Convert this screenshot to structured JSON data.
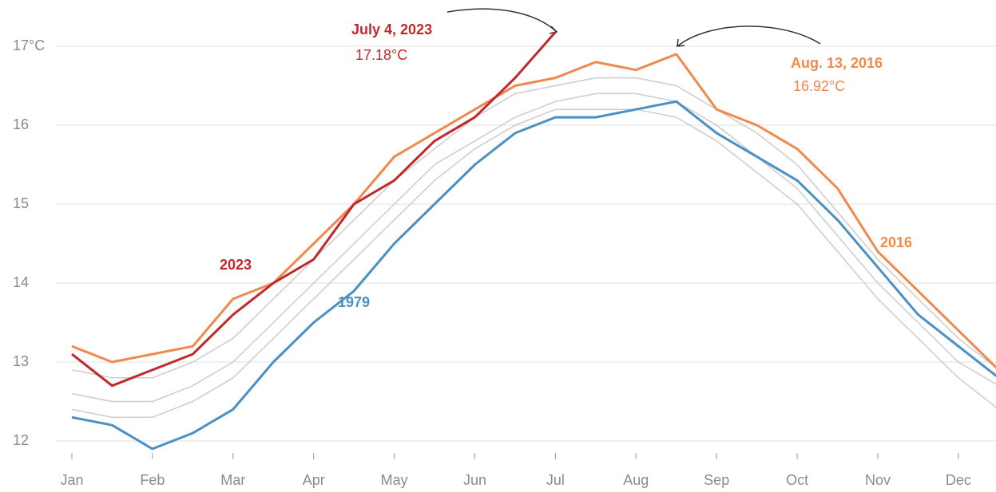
{
  "chart_data": {
    "type": "line",
    "categories": [
      "Jan",
      null,
      "Feb",
      null,
      "Mar",
      null,
      "Apr",
      null,
      "May",
      null,
      "Jun",
      null,
      "Jul",
      null,
      "Aug",
      null,
      "Sep",
      null,
      "Oct",
      null,
      "Nov",
      null,
      "Dec",
      null
    ],
    "ylim": [
      12,
      17
    ],
    "yticks": [
      12,
      13,
      14,
      15,
      16,
      {
        "value": 17,
        "label": "17°C"
      }
    ],
    "grid": true,
    "series": [
      {
        "color": "#cccccc",
        "values": [
          12.6,
          12.5,
          12.5,
          12.7,
          13.0,
          13.5,
          14.0,
          14.5,
          15.0,
          15.5,
          15.8,
          16.1,
          16.3,
          16.4,
          16.4,
          16.3,
          16.0,
          15.6,
          15.2,
          14.6,
          14.0,
          13.5,
          13.0,
          12.7
        ]
      },
      {
        "color": "#cccccc",
        "values": [
          12.4,
          12.3,
          12.3,
          12.5,
          12.8,
          13.3,
          13.8,
          14.3,
          14.8,
          15.3,
          15.7,
          16.0,
          16.2,
          16.2,
          16.2,
          16.1,
          15.8,
          15.4,
          15.0,
          14.4,
          13.8,
          13.3,
          12.8,
          12.4
        ]
      },
      {
        "color": "#cccccc",
        "values": [
          12.9,
          12.8,
          12.8,
          13.0,
          13.3,
          13.8,
          14.3,
          14.8,
          15.3,
          15.7,
          16.1,
          16.4,
          16.5,
          16.6,
          16.6,
          16.5,
          16.2,
          15.9,
          15.5,
          14.9,
          14.3,
          13.8,
          13.3,
          12.9
        ]
      },
      {
        "name": "1979",
        "color": "#4a90c4",
        "values": [
          12.3,
          12.2,
          11.9,
          12.1,
          12.4,
          13.0,
          13.5,
          13.9,
          14.5,
          15.0,
          15.5,
          15.9,
          16.1,
          16.1,
          16.2,
          16.3,
          15.9,
          15.6,
          15.3,
          14.8,
          14.2,
          13.6,
          13.2,
          12.8
        ]
      },
      {
        "name": "2016",
        "color": "#ef8a4c",
        "values": [
          13.2,
          13.0,
          13.1,
          13.2,
          13.8,
          14.0,
          14.5,
          15.0,
          15.6,
          15.9,
          16.2,
          16.5,
          16.6,
          16.8,
          16.7,
          16.9,
          16.2,
          16.0,
          15.7,
          15.2,
          14.4,
          13.9,
          13.4,
          12.9
        ]
      },
      {
        "name": "2023",
        "color": "#c0282d",
        "values": [
          13.1,
          12.7,
          12.9,
          13.1,
          13.6,
          14.0,
          14.3,
          15.0,
          15.3,
          15.8,
          16.1,
          16.6,
          17.18,
          null,
          null,
          null,
          null,
          null,
          null,
          null,
          null,
          null,
          null,
          null
        ]
      }
    ],
    "annotations": [
      {
        "text": "July 4, 2023",
        "color": "#c0282d"
      },
      {
        "text": "17.18°C",
        "color": "#c0282d"
      },
      {
        "text": "Aug. 13, 2016",
        "color": "#ef8a4c"
      },
      {
        "text": "16.92°C",
        "color": "#ef8a4c"
      }
    ]
  }
}
